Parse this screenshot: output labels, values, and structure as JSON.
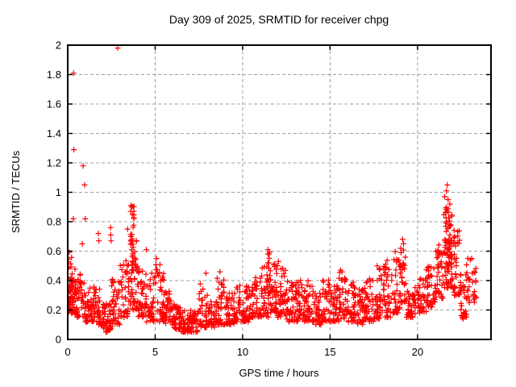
{
  "chart_data": {
    "type": "scatter",
    "title": "Day 309 of 2025, SRMTID for receiver chpg",
    "xlabel": "GPS time / hours",
    "ylabel": "SRMTID / TECUs",
    "xlim": [
      0,
      24.2
    ],
    "ylim": [
      0,
      2
    ],
    "xticks": [
      0,
      5,
      10,
      15,
      20
    ],
    "yticks": [
      0,
      0.2,
      0.4,
      0.6,
      0.8,
      1,
      1.2,
      1.4,
      1.6,
      1.8,
      2
    ],
    "grid": true,
    "grid_style": "dashed",
    "grid_color": "#a0a0a0",
    "border_color": "#000000",
    "marker": "plus",
    "marker_size": 7,
    "marker_color": "#ff0000",
    "legend": "none",
    "series_name": "SRMTID",
    "seed": 309,
    "density_power": 1.6,
    "outliers": [
      [
        0.33,
        1.81
      ],
      [
        0.35,
        1.29
      ],
      [
        2.86,
        1.98
      ],
      [
        0.88,
        1.18
      ],
      [
        0.97,
        1.05
      ],
      [
        0.32,
        0.82
      ],
      [
        1.0,
        0.82
      ],
      [
        0.83,
        0.65
      ],
      [
        1.75,
        0.72
      ],
      [
        1.78,
        0.67
      ],
      [
        2.45,
        0.76
      ],
      [
        2.46,
        0.71
      ],
      [
        2.48,
        0.67
      ],
      [
        3.42,
        0.75
      ],
      [
        3.6,
        0.87
      ],
      [
        3.62,
        0.91
      ],
      [
        3.66,
        0.9
      ],
      [
        3.7,
        0.85
      ],
      [
        4.5,
        0.61
      ],
      [
        5.08,
        0.55
      ],
      [
        7.9,
        0.45
      ],
      [
        8.7,
        0.46
      ],
      [
        11.45,
        0.61
      ],
      [
        11.5,
        0.58
      ],
      [
        12.05,
        0.53
      ],
      [
        15.6,
        0.47
      ],
      [
        19.15,
        0.68
      ],
      [
        19.2,
        0.65
      ],
      [
        21.55,
        0.97
      ],
      [
        21.65,
        1.01
      ],
      [
        21.7,
        1.05
      ],
      [
        21.75,
        0.95
      ],
      [
        21.85,
        0.92
      ],
      [
        22.6,
        0.14
      ],
      [
        23.1,
        0.55
      ]
    ],
    "density_bands": [
      [
        0.0,
        0.5,
        0.18,
        0.52,
        55
      ],
      [
        0.0,
        0.3,
        0.25,
        0.6,
        20
      ],
      [
        0.5,
        1.0,
        0.15,
        0.45,
        40
      ],
      [
        1.0,
        1.5,
        0.12,
        0.4,
        40
      ],
      [
        1.5,
        2.0,
        0.1,
        0.35,
        40
      ],
      [
        2.0,
        2.5,
        0.05,
        0.25,
        45
      ],
      [
        2.5,
        3.0,
        0.1,
        0.42,
        40
      ],
      [
        3.0,
        3.5,
        0.15,
        0.55,
        40
      ],
      [
        3.5,
        4.0,
        0.2,
        0.7,
        45
      ],
      [
        3.55,
        3.8,
        0.45,
        0.92,
        25
      ],
      [
        4.0,
        4.5,
        0.15,
        0.5,
        40
      ],
      [
        4.5,
        5.0,
        0.12,
        0.45,
        38
      ],
      [
        5.0,
        5.5,
        0.12,
        0.52,
        38
      ],
      [
        5.5,
        6.0,
        0.1,
        0.35,
        38
      ],
      [
        6.0,
        6.5,
        0.07,
        0.25,
        40
      ],
      [
        6.5,
        7.5,
        0.05,
        0.2,
        80
      ],
      [
        7.5,
        8.0,
        0.08,
        0.38,
        40
      ],
      [
        8.0,
        8.5,
        0.08,
        0.28,
        38
      ],
      [
        8.5,
        9.0,
        0.1,
        0.42,
        38
      ],
      [
        9.0,
        9.5,
        0.1,
        0.32,
        38
      ],
      [
        9.5,
        10.5,
        0.12,
        0.38,
        75
      ],
      [
        10.5,
        11.0,
        0.15,
        0.42,
        38
      ],
      [
        11.0,
        11.5,
        0.15,
        0.5,
        40
      ],
      [
        11.4,
        11.6,
        0.3,
        0.62,
        15
      ],
      [
        11.5,
        12.0,
        0.18,
        0.52,
        40
      ],
      [
        12.0,
        12.5,
        0.15,
        0.5,
        40
      ],
      [
        12.5,
        13.0,
        0.12,
        0.4,
        38
      ],
      [
        13.0,
        13.5,
        0.12,
        0.45,
        38
      ],
      [
        13.5,
        14.0,
        0.12,
        0.4,
        38
      ],
      [
        14.0,
        14.5,
        0.1,
        0.36,
        38
      ],
      [
        14.5,
        15.0,
        0.12,
        0.42,
        38
      ],
      [
        15.0,
        15.5,
        0.12,
        0.4,
        38
      ],
      [
        15.5,
        16.0,
        0.14,
        0.46,
        38
      ],
      [
        16.0,
        16.5,
        0.12,
        0.4,
        38
      ],
      [
        16.5,
        17.0,
        0.1,
        0.36,
        38
      ],
      [
        17.0,
        17.5,
        0.12,
        0.42,
        38
      ],
      [
        17.5,
        18.0,
        0.14,
        0.5,
        38
      ],
      [
        18.0,
        18.5,
        0.15,
        0.55,
        38
      ],
      [
        18.5,
        19.0,
        0.18,
        0.6,
        38
      ],
      [
        19.0,
        19.35,
        0.25,
        0.68,
        30
      ],
      [
        19.35,
        20.0,
        0.15,
        0.38,
        45
      ],
      [
        20.0,
        20.5,
        0.18,
        0.42,
        36
      ],
      [
        20.5,
        21.0,
        0.22,
        0.5,
        38
      ],
      [
        21.0,
        21.5,
        0.28,
        0.65,
        40
      ],
      [
        21.5,
        22.0,
        0.35,
        0.9,
        55
      ],
      [
        21.55,
        21.95,
        0.55,
        0.95,
        25
      ],
      [
        22.0,
        22.4,
        0.3,
        0.75,
        35
      ],
      [
        22.4,
        22.8,
        0.15,
        0.45,
        28
      ],
      [
        22.8,
        23.35,
        0.25,
        0.55,
        30
      ]
    ]
  }
}
